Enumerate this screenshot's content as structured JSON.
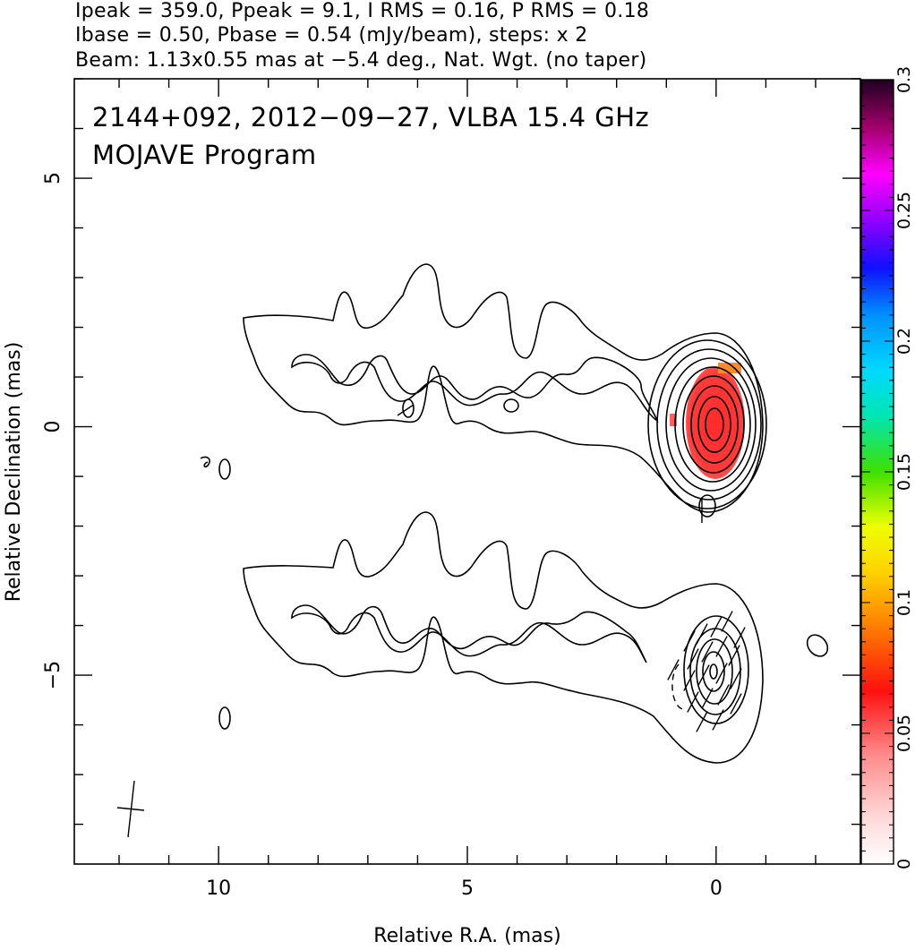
{
  "header": {
    "line1": "Ipeak = 359.0, Ppeak = 9.1, I RMS = 0.16, P RMS = 0.18",
    "line2": "Ibase = 0.50, Pbase = 0.54 (mJy/beam), steps: x 2",
    "line3": "Beam: 1.13x0.55 mas at −5.4 deg., Nat. Wgt. (no taper)"
  },
  "chart_data": {
    "type": "heatmap",
    "title": "2144+092, 2012−09−27, VLBA 15.4 GHz",
    "subtitle": "MOJAVE Program",
    "xlabel": "Relative R.A. (mas)",
    "ylabel": "Relative Declination (mas)",
    "x_ticks": [
      10,
      5,
      0
    ],
    "x_tick_labels": [
      "10",
      "5",
      "0"
    ],
    "y_ticks": [
      5,
      0,
      -5
    ],
    "y_tick_labels": [
      "5",
      "0",
      "−5"
    ],
    "xlim": [
      12.9,
      -2.9
    ],
    "ylim": [
      -8.8,
      7.0
    ],
    "colorbar": {
      "range": [
        0,
        0.3
      ],
      "tick_values": [
        0,
        0.05,
        0.1,
        0.15,
        0.2,
        0.25,
        0.3
      ],
      "tick_labels": [
        "0",
        "0.05",
        "0.1",
        "0.15",
        "0.2",
        "0.25",
        "0.3"
      ]
    },
    "upper_panel": {
      "description_offset_dec": 0,
      "peak_ra": 0,
      "peak_dec": 0,
      "color_fill": "#ff3030"
    },
    "lower_panel": {
      "offset_dec": -5,
      "peak_ra": 0,
      "peak_dec": -5
    },
    "beam": {
      "major_mas": 1.13,
      "minor_mas": 0.55,
      "pa_deg": -5.4,
      "center_ra": 11.7,
      "center_dec": -7.7
    }
  }
}
